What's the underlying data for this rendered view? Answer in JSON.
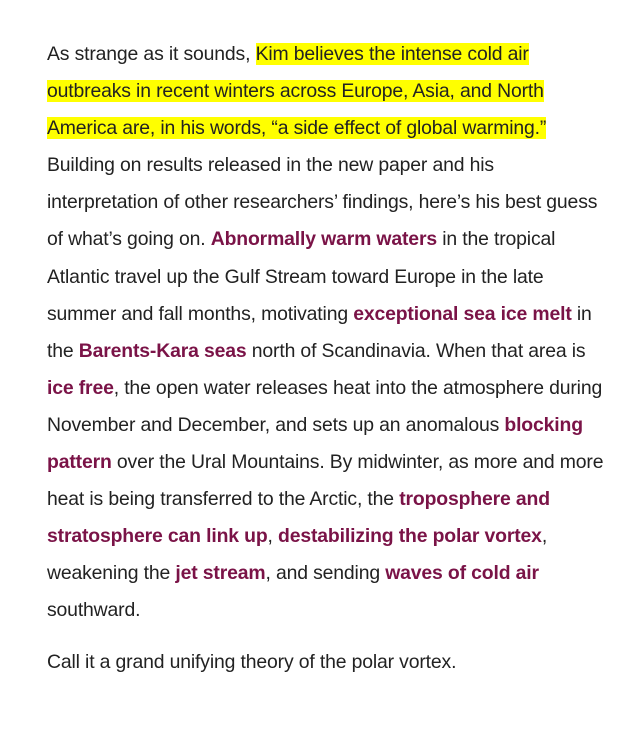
{
  "article": {
    "paragraph1": {
      "t1": "As strange as it sounds, ",
      "highlight": "Kim believes the intense cold air outbreaks in recent winters across Europe, Asia, and North America are, in his words, “a side effect of global warming.”",
      "t2": " Building on results released in the new paper and his interpretation of other researchers’ findings, here’s his best guess of what’s going on. ",
      "link1": "Abnormally warm waters",
      "t3": " in the tropical Atlantic travel up the Gulf Stream toward Europe in the late summer and fall months, motivating ",
      "link2": "exceptional sea ice melt",
      "t4": " in the ",
      "link3": "Barents-Kara seas",
      "t5": " north of Scandinavia. When that area is ",
      "link4": "ice free",
      "t6": ", the open water releases heat into the atmosphere during November and December, and sets up an anomalous ",
      "link5": "blocking pattern",
      "t7": " over the Ural Mountains. By midwinter, as more and more heat is being transferred to the Arctic, the ",
      "link6": "troposphere and stratosphere can link up",
      "t8": ", ",
      "link7": "destabilizing the polar vortex",
      "t9": ", weakening the ",
      "link8": "jet stream",
      "t10": ", and sending ",
      "link9": "waves of cold air",
      "t11": " southward."
    },
    "paragraph2": "Call it a grand unifying theory of the polar vortex."
  },
  "colors": {
    "highlight": "#ffff00",
    "link": "#7a1347",
    "text": "#222222"
  }
}
